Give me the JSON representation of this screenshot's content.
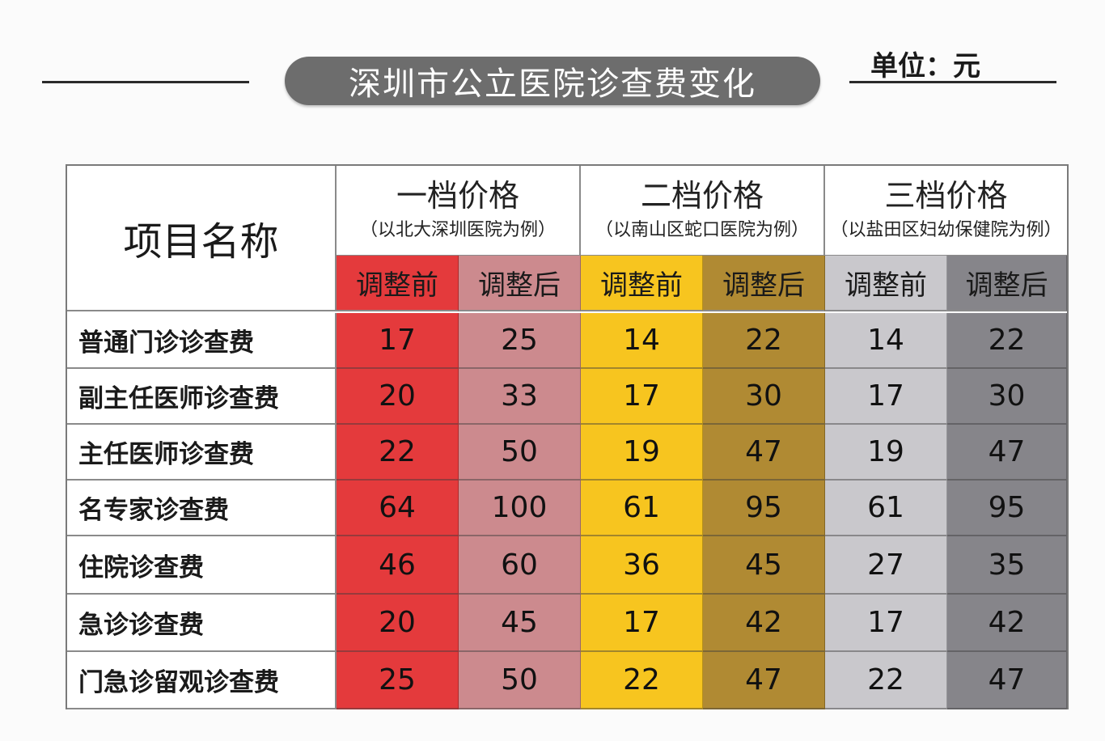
{
  "header": {
    "title": "深圳市公立医院诊查费变化",
    "unit": "单位：元"
  },
  "table": {
    "item_header": "项目名称",
    "tiers": [
      {
        "title": "一档价格",
        "subtitle": "（以北大深圳医院为例）"
      },
      {
        "title": "二档价格",
        "subtitle": "（以南山区蛇口医院为例）"
      },
      {
        "title": "三档价格",
        "subtitle": "（以盐田区妇幼保健院为例）"
      }
    ],
    "sub_headers": [
      "调整前",
      "调整后",
      "调整前",
      "调整后",
      "调整前",
      "调整后"
    ],
    "column_colors": [
      "#e43a3c",
      "#cc8a8e",
      "#f7c51f",
      "#b08a33",
      "#c9c8cc",
      "#86858a"
    ],
    "rows": [
      {
        "name": "普通门诊诊查费",
        "values": [
          "17",
          "25",
          "14",
          "22",
          "14",
          "22"
        ]
      },
      {
        "name": "副主任医师诊查费",
        "values": [
          "20",
          "33",
          "17",
          "30",
          "17",
          "30"
        ]
      },
      {
        "name": "主任医师诊查费",
        "values": [
          "22",
          "50",
          "19",
          "47",
          "19",
          "47"
        ]
      },
      {
        "name": "名专家诊查费",
        "values": [
          "64",
          "100",
          "61",
          "95",
          "61",
          "95"
        ]
      },
      {
        "name": "住院诊查费",
        "values": [
          "46",
          "60",
          "36",
          "45",
          "27",
          "35"
        ]
      },
      {
        "name": "急诊诊查费",
        "values": [
          "20",
          "45",
          "17",
          "42",
          "17",
          "42"
        ]
      },
      {
        "name": "门急诊留观诊查费",
        "values": [
          "25",
          "50",
          "22",
          "47",
          "22",
          "47"
        ]
      }
    ]
  },
  "chart_data": {
    "type": "table",
    "title": "深圳市公立医院诊查费变化",
    "unit": "元",
    "columns": [
      "项目名称",
      "一档价格 调整前",
      "一档价格 调整后",
      "二档价格 调整前",
      "二档价格 调整后",
      "三档价格 调整前",
      "三档价格 调整后"
    ],
    "categories": [
      "普通门诊诊查费",
      "副主任医师诊查费",
      "主任医师诊查费",
      "名专家诊查费",
      "住院诊查费",
      "急诊诊查费",
      "门急诊留观诊查费"
    ],
    "series": [
      {
        "name": "一档价格（以北大深圳医院为例）调整前",
        "values": [
          17,
          20,
          22,
          64,
          46,
          20,
          25
        ]
      },
      {
        "name": "一档价格（以北大深圳医院为例）调整后",
        "values": [
          25,
          33,
          50,
          100,
          60,
          45,
          50
        ]
      },
      {
        "name": "二档价格（以南山区蛇口医院为例）调整前",
        "values": [
          14,
          17,
          19,
          61,
          36,
          17,
          22
        ]
      },
      {
        "name": "二档价格（以南山区蛇口医院为例）调整后",
        "values": [
          22,
          30,
          47,
          95,
          45,
          42,
          47
        ]
      },
      {
        "name": "三档价格（以盐田区妇幼保健院为例）调整前",
        "values": [
          14,
          17,
          19,
          61,
          27,
          17,
          22
        ]
      },
      {
        "name": "三档价格（以盐田区妇幼保健院为例）调整后",
        "values": [
          22,
          30,
          47,
          95,
          35,
          42,
          47
        ]
      }
    ]
  }
}
